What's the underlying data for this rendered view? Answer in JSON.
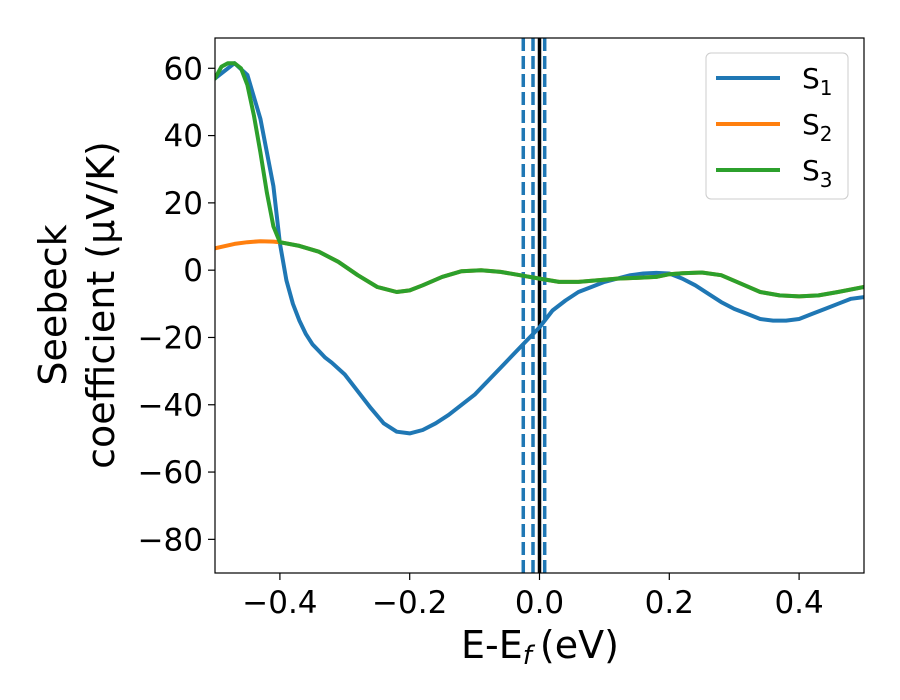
{
  "chart_data": {
    "type": "line",
    "xlabel": "E-E",
    "xlabel_sub": "f",
    "xlabel_unit": "(eV)",
    "ylabel_line1": "Seebeck",
    "ylabel_line2": "coefficient  (μV/K)",
    "xlim": [
      -0.5,
      0.5
    ],
    "ylim": [
      -90,
      69
    ],
    "x_ticks": [
      -0.4,
      -0.2,
      0.0,
      0.2,
      0.4
    ],
    "x_tick_labels": [
      "−0.4",
      "−0.2",
      "0.0",
      "0.2",
      "0.4"
    ],
    "y_ticks": [
      60,
      40,
      20,
      0,
      -20,
      -40,
      -60,
      -80
    ],
    "y_tick_labels": [
      "60",
      "40",
      "20",
      "0",
      "−20",
      "−40",
      "−60",
      "−80"
    ],
    "grid": false,
    "legend_position": "top-right",
    "series": [
      {
        "name": "S",
        "sub": "1",
        "color": "#1f77b4",
        "x": [
          -0.5,
          -0.47,
          -0.45,
          -0.43,
          -0.41,
          -0.4,
          -0.39,
          -0.38,
          -0.37,
          -0.36,
          -0.35,
          -0.34,
          -0.33,
          -0.32,
          -0.3,
          -0.28,
          -0.26,
          -0.24,
          -0.22,
          -0.2,
          -0.18,
          -0.16,
          -0.14,
          -0.12,
          -0.1,
          -0.08,
          -0.06,
          -0.04,
          -0.02,
          0.0,
          0.02,
          0.04,
          0.06,
          0.08,
          0.1,
          0.12,
          0.14,
          0.16,
          0.18,
          0.2,
          0.22,
          0.24,
          0.26,
          0.28,
          0.3,
          0.32,
          0.34,
          0.36,
          0.38,
          0.4,
          0.42,
          0.44,
          0.46,
          0.48,
          0.5
        ],
        "y": [
          57,
          61.5,
          58,
          45,
          25,
          8,
          -3,
          -10,
          -15,
          -19,
          -22,
          -24,
          -26,
          -27.5,
          -31,
          -36,
          -41,
          -45.5,
          -48,
          -48.5,
          -47.5,
          -45.5,
          -43,
          -40,
          -37,
          -33,
          -29,
          -25,
          -21,
          -17,
          -12,
          -9,
          -6.5,
          -5,
          -3.5,
          -2.5,
          -1.5,
          -1,
          -0.8,
          -1,
          -2.5,
          -4.5,
          -7,
          -9.5,
          -11.5,
          -13,
          -14.5,
          -15,
          -15,
          -14.5,
          -13,
          -11.5,
          -10,
          -8.5,
          -8
        ]
      },
      {
        "name": "S",
        "sub": "2",
        "color": "#ff7f0e",
        "x": [
          -0.5,
          -0.47,
          -0.45,
          -0.43,
          -0.41,
          -0.4,
          -0.37,
          -0.34,
          -0.31,
          -0.28,
          -0.25,
          -0.22,
          -0.2,
          -0.18,
          -0.15,
          -0.12,
          -0.09,
          -0.06,
          -0.03,
          0.0,
          0.03,
          0.06,
          0.09,
          0.12,
          0.15,
          0.18,
          0.2,
          0.22,
          0.25,
          0.28,
          0.31,
          0.34,
          0.37,
          0.4,
          0.43,
          0.46,
          0.5
        ],
        "y": [
          6.5,
          7.8,
          8.3,
          8.6,
          8.5,
          8.3,
          7.2,
          5.5,
          2.5,
          -1.5,
          -5,
          -6.5,
          -6,
          -4.5,
          -2,
          -0.3,
          0,
          -0.5,
          -1.5,
          -2.5,
          -3.5,
          -3.5,
          -3,
          -2.5,
          -2.3,
          -2,
          -1.2,
          -0.9,
          -0.7,
          -1.5,
          -4,
          -6.5,
          -7.5,
          -7.8,
          -7.5,
          -6.5,
          -5
        ]
      },
      {
        "name": "S",
        "sub": "3",
        "color": "#2ca02c",
        "x": [
          -0.5,
          -0.49,
          -0.48,
          -0.47,
          -0.46,
          -0.45,
          -0.44,
          -0.43,
          -0.42,
          -0.41,
          -0.4,
          -0.37,
          -0.34,
          -0.31,
          -0.28,
          -0.25,
          -0.22,
          -0.2,
          -0.18,
          -0.15,
          -0.12,
          -0.09,
          -0.06,
          -0.03,
          0.0,
          0.03,
          0.06,
          0.09,
          0.12,
          0.15,
          0.18,
          0.2,
          0.22,
          0.25,
          0.28,
          0.31,
          0.34,
          0.37,
          0.4,
          0.43,
          0.46,
          0.5
        ],
        "y": [
          57,
          60.5,
          61.5,
          61.5,
          60,
          55,
          46,
          35,
          23,
          13,
          8.3,
          7.2,
          5.5,
          2.5,
          -1.5,
          -5,
          -6.5,
          -6,
          -4.5,
          -2,
          -0.3,
          0,
          -0.5,
          -1.5,
          -2.5,
          -3.5,
          -3.5,
          -3,
          -2.5,
          -2.3,
          -2,
          -1.2,
          -0.9,
          -0.7,
          -1.5,
          -4,
          -6.5,
          -7.5,
          -7.8,
          -7.5,
          -6.5,
          -5
        ]
      }
    ],
    "vlines": [
      {
        "x": 0.0,
        "color": "#000000",
        "style": "solid"
      },
      {
        "x": -0.025,
        "color": "#1f77b4",
        "style": "dashed"
      },
      {
        "x": -0.01,
        "color": "#1f77b4",
        "style": "dashed"
      },
      {
        "x": 0.008,
        "color": "#1f77b4",
        "style": "dashed"
      }
    ]
  }
}
